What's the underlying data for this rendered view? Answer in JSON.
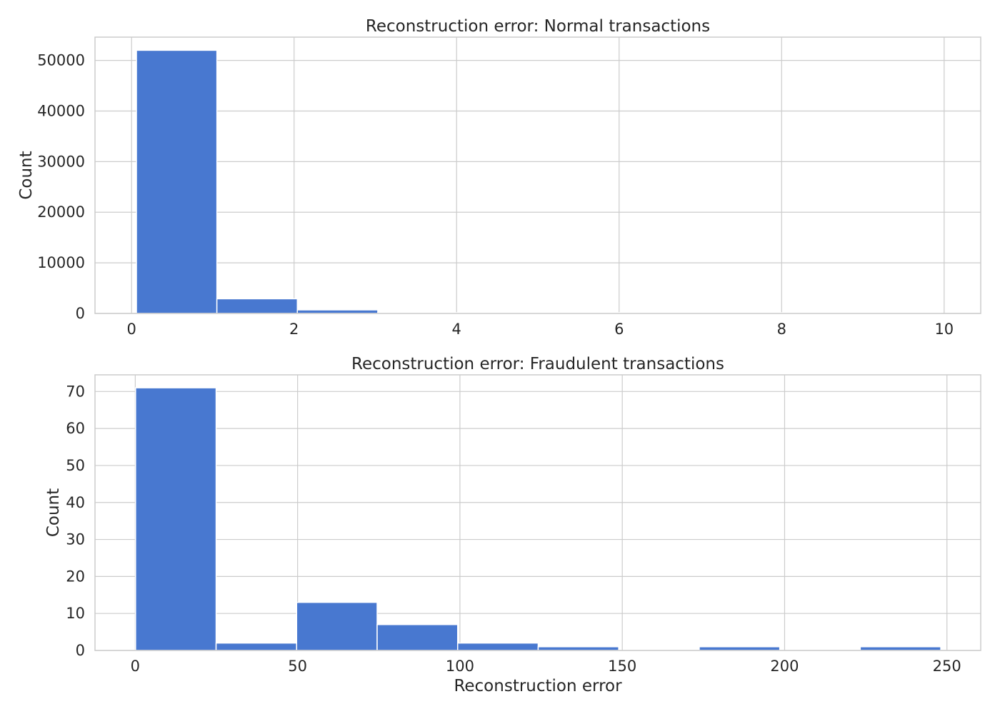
{
  "figure": {
    "background": "#ffffff",
    "plot_background": "#ffffff",
    "grid_color": "#cccccc",
    "spine_color": "#cccccc",
    "text_color": "#262626",
    "bar_color": "#4878d0",
    "bar_edge_color": "#ffffff"
  },
  "chart_data": [
    {
      "type": "bar",
      "histogram": true,
      "title": "Reconstruction error: Normal transactions",
      "xlabel": "",
      "ylabel": "Count",
      "xlim": [
        -0.45,
        10.45
      ],
      "ylim": [
        0,
        54600
      ],
      "xticks": [
        0,
        2,
        4,
        6,
        8,
        10
      ],
      "yticks": [
        0,
        10000,
        20000,
        30000,
        40000,
        50000
      ],
      "grid": true,
      "bins": [
        {
          "x0": 0.06,
          "x1": 1.05,
          "count": 52000
        },
        {
          "x0": 1.05,
          "x1": 2.04,
          "count": 2900
        },
        {
          "x0": 2.04,
          "x1": 3.03,
          "count": 700
        },
        {
          "x0": 3.03,
          "x1": 4.02,
          "count": 130
        },
        {
          "x0": 4.02,
          "x1": 5.01,
          "count": 60
        },
        {
          "x0": 5.01,
          "x1": 6.0,
          "count": 25
        },
        {
          "x0": 6.0,
          "x1": 6.99,
          "count": 15
        },
        {
          "x0": 6.99,
          "x1": 7.98,
          "count": 8
        },
        {
          "x0": 7.98,
          "x1": 8.97,
          "count": 5
        },
        {
          "x0": 8.97,
          "x1": 9.96,
          "count": 3
        }
      ]
    },
    {
      "type": "bar",
      "histogram": true,
      "title": "Reconstruction error: Fraudulent transactions",
      "xlabel": "Reconstruction error",
      "ylabel": "Count",
      "xlim": [
        -12.4,
        260.4
      ],
      "ylim": [
        0,
        74.5
      ],
      "xticks": [
        0,
        50,
        100,
        150,
        200,
        250
      ],
      "yticks": [
        0,
        10,
        20,
        30,
        40,
        50,
        60,
        70
      ],
      "grid": true,
      "bins": [
        {
          "x0": 0.1,
          "x1": 24.9,
          "count": 71
        },
        {
          "x0": 24.9,
          "x1": 49.7,
          "count": 2
        },
        {
          "x0": 49.7,
          "x1": 74.5,
          "count": 13
        },
        {
          "x0": 74.5,
          "x1": 99.3,
          "count": 7
        },
        {
          "x0": 99.3,
          "x1": 124.1,
          "count": 2
        },
        {
          "x0": 124.1,
          "x1": 148.9,
          "count": 1
        },
        {
          "x0": 148.9,
          "x1": 173.7,
          "count": 0
        },
        {
          "x0": 173.7,
          "x1": 198.5,
          "count": 1
        },
        {
          "x0": 198.5,
          "x1": 223.3,
          "count": 0
        },
        {
          "x0": 223.3,
          "x1": 248.1,
          "count": 1
        }
      ]
    }
  ]
}
